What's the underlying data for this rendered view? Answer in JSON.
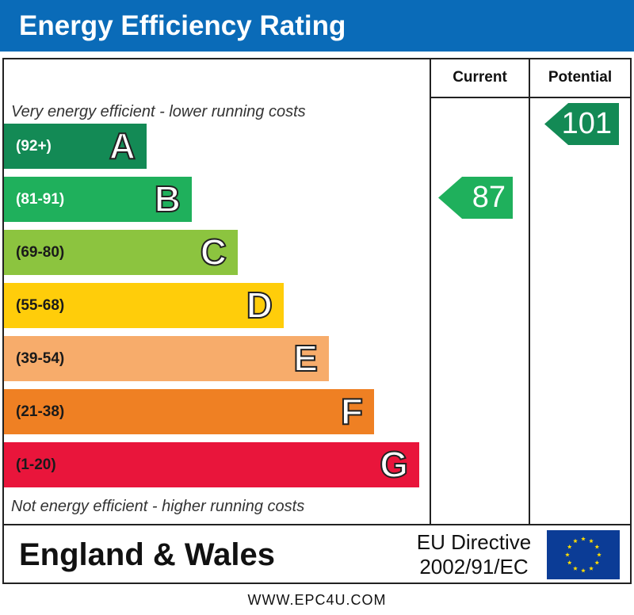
{
  "header": {
    "title": "Energy Efficiency Rating"
  },
  "columns": {
    "current": "Current",
    "potential": "Potential"
  },
  "captions": {
    "top": "Very energy efficient - lower running costs",
    "bottom": "Not energy efficient - higher running costs"
  },
  "chart_data": {
    "type": "bar",
    "title": "Energy Efficiency Rating",
    "bands": [
      {
        "letter": "A",
        "range": "(92+)",
        "color": "#138a55"
      },
      {
        "letter": "B",
        "range": "(81-91)",
        "color": "#1fb05c"
      },
      {
        "letter": "C",
        "range": "(69-80)",
        "color": "#8cc43f"
      },
      {
        "letter": "D",
        "range": "(55-68)",
        "color": "#ffcd0a"
      },
      {
        "letter": "E",
        "range": "(39-54)",
        "color": "#f7ac6b"
      },
      {
        "letter": "F",
        "range": "(21-38)",
        "color": "#ef8023"
      },
      {
        "letter": "G",
        "range": "(1-20)",
        "color": "#e9153b"
      }
    ],
    "current": {
      "value": "87",
      "band": "B",
      "color": "#1fb05c"
    },
    "potential": {
      "value": "101",
      "band": "A",
      "color": "#138a55"
    }
  },
  "footer": {
    "region": "England & Wales",
    "eu_line1": "EU Directive",
    "eu_line2": "2002/91/EC",
    "flag_colors": {
      "field": "#0b3c96",
      "star": "#ffdd00"
    }
  },
  "site": "WWW.EPC4U.COM"
}
